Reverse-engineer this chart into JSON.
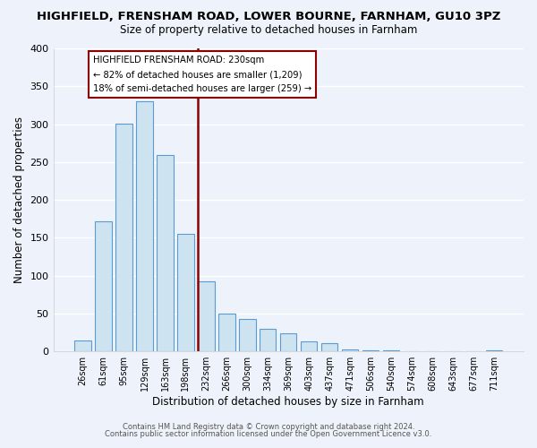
{
  "title": "HIGHFIELD, FRENSHAM ROAD, LOWER BOURNE, FARNHAM, GU10 3PZ",
  "subtitle": "Size of property relative to detached houses in Farnham",
  "xlabel": "Distribution of detached houses by size in Farnham",
  "ylabel": "Number of detached properties",
  "bar_labels": [
    "26sqm",
    "61sqm",
    "95sqm",
    "129sqm",
    "163sqm",
    "198sqm",
    "232sqm",
    "266sqm",
    "300sqm",
    "334sqm",
    "369sqm",
    "403sqm",
    "437sqm",
    "471sqm",
    "506sqm",
    "540sqm",
    "574sqm",
    "608sqm",
    "643sqm",
    "677sqm",
    "711sqm"
  ],
  "bar_values": [
    15,
    172,
    301,
    330,
    259,
    155,
    93,
    50,
    43,
    30,
    24,
    13,
    11,
    3,
    1,
    1,
    0,
    0,
    0,
    0,
    2
  ],
  "bar_color": "#cde4f0",
  "bar_edge_color": "#5b9bd5",
  "highlight_bar_index": 6,
  "highlight_color": "#8b0000",
  "annotation_title": "HIGHFIELD FRENSHAM ROAD: 230sqm",
  "annotation_line1": "← 82% of detached houses are smaller (1,209)",
  "annotation_line2": "18% of semi-detached houses are larger (259) →",
  "annotation_box_color": "#ffffff",
  "annotation_box_edge_color": "#8b0000",
  "ylim": [
    0,
    400
  ],
  "yticks": [
    0,
    50,
    100,
    150,
    200,
    250,
    300,
    350,
    400
  ],
  "footer_line1": "Contains HM Land Registry data © Crown copyright and database right 2024.",
  "footer_line2": "Contains public sector information licensed under the Open Government Licence v3.0.",
  "background_color": "#eef2fa",
  "grid_color": "#ffffff"
}
